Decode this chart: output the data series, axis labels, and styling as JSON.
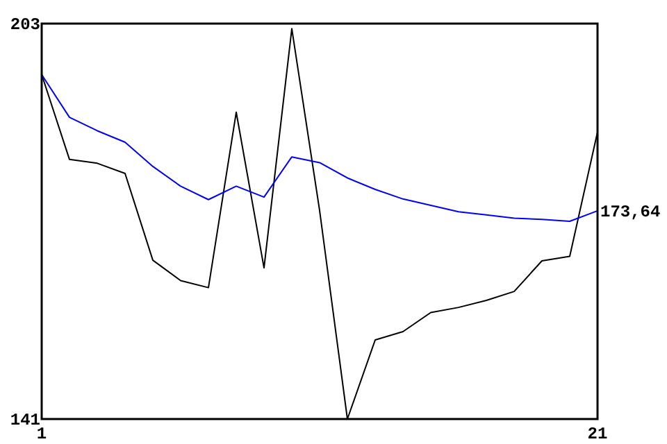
{
  "chart_data": {
    "type": "line",
    "x": [
      1,
      2,
      3,
      4,
      5,
      6,
      7,
      8,
      9,
      10,
      11,
      12,
      13,
      14,
      15,
      16,
      17,
      18,
      19,
      20,
      21
    ],
    "xlim": [
      1,
      21
    ],
    "xticks": [
      1,
      21
    ],
    "ylim": [
      141,
      203
    ],
    "yticks": [
      141,
      203
    ],
    "series": [
      {
        "color": "#000000",
        "values": [
          195.0,
          181.7,
          181.1,
          179.5,
          165.9,
          162.7,
          161.6,
          189.1,
          164.7,
          202.2,
          173.7,
          141,
          153.4,
          154.7,
          157.7,
          158.5,
          159.6,
          161,
          165.8,
          166.5,
          186
        ]
      },
      {
        "color": "#0000ff",
        "values": [
          195.0,
          188.3,
          186.2,
          184.4,
          180.6,
          177.5,
          175.4,
          177.5,
          175.8,
          182.1,
          181.2,
          178.8,
          177.0,
          175.5,
          174.5,
          173.5,
          173.0,
          172.5,
          172.3,
          172.0,
          173.64
        ]
      }
    ],
    "annotations": [
      {
        "text": "173,64",
        "x": 21,
        "y": 173.64
      }
    ]
  }
}
